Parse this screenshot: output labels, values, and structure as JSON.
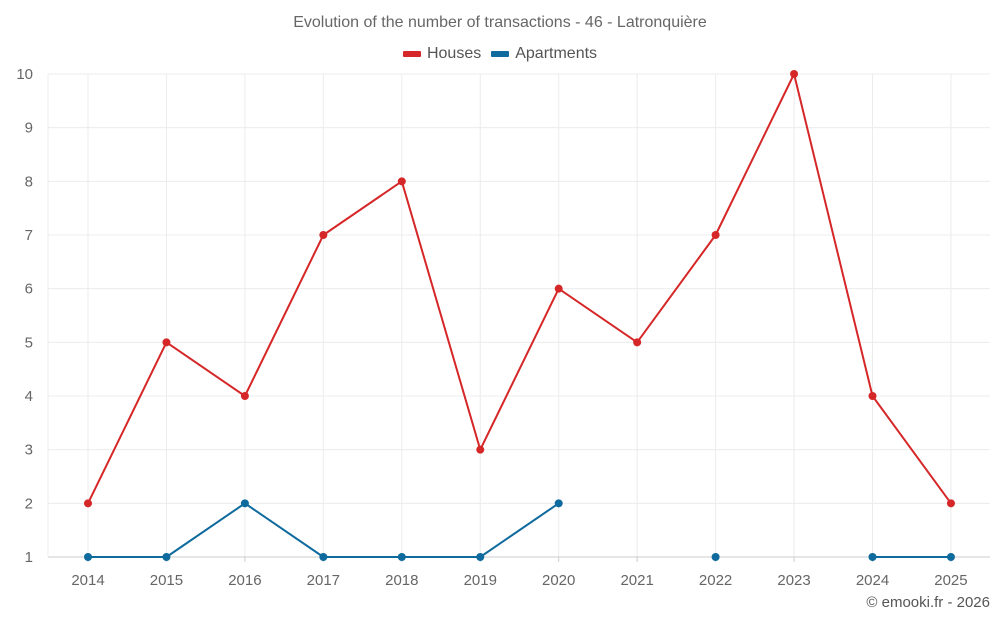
{
  "chart_data": {
    "type": "line",
    "title": "Evolution of the number of transactions - 46 - Latronquière",
    "xlabel": "",
    "ylabel": "",
    "categories": [
      "2014",
      "2015",
      "2016",
      "2017",
      "2018",
      "2019",
      "2020",
      "2021",
      "2022",
      "2023",
      "2024",
      "2025"
    ],
    "series": [
      {
        "name": "Houses",
        "color": "#d62728",
        "values": [
          2,
          5,
          4,
          7,
          8,
          3,
          6,
          5,
          7,
          10,
          4,
          2
        ]
      },
      {
        "name": "Apartments",
        "color": "#0f6a9d",
        "values": [
          1,
          1,
          2,
          1,
          1,
          1,
          2,
          null,
          1,
          null,
          1,
          1
        ]
      }
    ],
    "ylim": [
      1,
      10
    ],
    "yticks": [
      "1",
      "2",
      "3",
      "4",
      "5",
      "6",
      "7",
      "8",
      "9",
      "10"
    ],
    "grid": true,
    "legend_position": "top-center"
  },
  "credit": "© emooki.fr - 2026"
}
